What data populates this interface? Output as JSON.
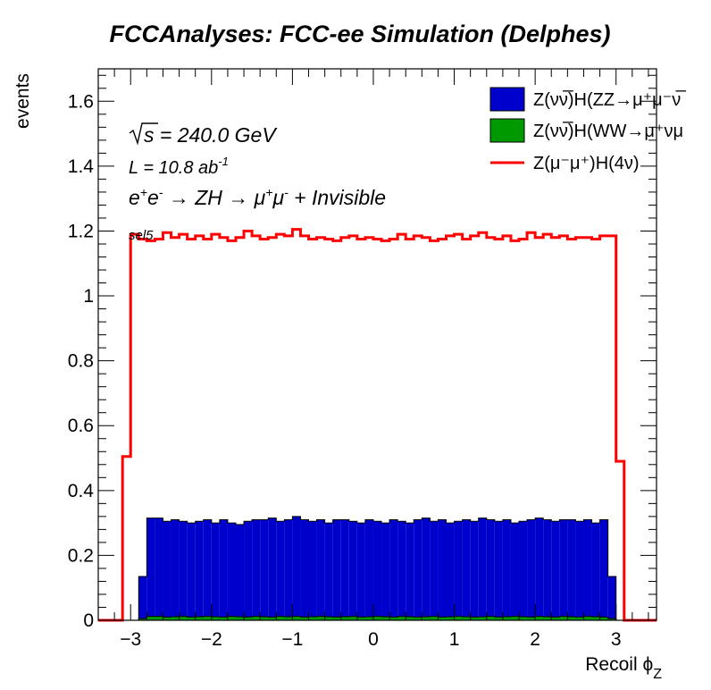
{
  "chart_data": {
    "type": "histogram",
    "title": "FCCAnalyses: FCC-ee Simulation (Delphes)",
    "xlabel": "Recoil ϕ",
    "xlabel_sub": "Z",
    "ylabel": "events",
    "xlim": [
      -3.4,
      3.5
    ],
    "ylim": [
      0,
      1.7
    ],
    "x_ticks": [
      -3,
      -2,
      -1,
      0,
      1,
      2,
      3
    ],
    "x_tick_labels": [
      "−3",
      "−2",
      "−1",
      "0",
      "1",
      "2",
      "3"
    ],
    "y_ticks": [
      0,
      0.2,
      0.4,
      0.6,
      0.8,
      1,
      1.2,
      1.4,
      1.6
    ],
    "y_tick_labels": [
      "0",
      "0.2",
      "0.4",
      "0.6",
      "0.8",
      "1",
      "1.2",
      "1.4",
      "1.6"
    ],
    "bin_edges_range": [
      -3.3,
      3.3
    ],
    "n_bins": 66,
    "annotations": {
      "sqrt_s": "s",
      "energy": " = 240.0 GeV",
      "lumi": "L = 10.8 ab",
      "lumi_exp": "-1",
      "process_e": "e",
      "process_plus": "+",
      "process_e2": "e",
      "process_minus": "-",
      "process_arrow1": " → ZH → μ",
      "process_mu_plus": "+",
      "process_mu": "μ",
      "process_mu_minus": "-",
      "process_tail": " + Invisible",
      "selection": "sel5"
    },
    "legend_position": "top-right",
    "series": [
      {
        "name": "Z(νν̅)H(ZZ→μ⁺μ⁻ν̅",
        "style": "filled",
        "color": "#0000cc",
        "values": [
          0,
          0,
          0,
          0,
          0.135,
          0.315,
          0.315,
          0.305,
          0.31,
          0.305,
          0.3,
          0.305,
          0.31,
          0.3,
          0.31,
          0.3,
          0.295,
          0.305,
          0.31,
          0.31,
          0.315,
          0.305,
          0.31,
          0.32,
          0.31,
          0.305,
          0.31,
          0.3,
          0.31,
          0.31,
          0.305,
          0.3,
          0.31,
          0.305,
          0.3,
          0.31,
          0.305,
          0.3,
          0.31,
          0.315,
          0.305,
          0.31,
          0.3,
          0.305,
          0.31,
          0.305,
          0.315,
          0.31,
          0.305,
          0.31,
          0.3,
          0.305,
          0.31,
          0.315,
          0.31,
          0.305,
          0.31,
          0.31,
          0.305,
          0.31,
          0.3,
          0.31,
          0.135,
          0,
          0,
          0
        ]
      },
      {
        "name": "Z(νν̅)H(WW→μ⁺νμ",
        "style": "filled",
        "color": "#009900",
        "values": [
          0,
          0,
          0,
          0,
          0.005,
          0.012,
          0.012,
          0.01,
          0.011,
          0.012,
          0.01,
          0.011,
          0.012,
          0.011,
          0.01,
          0.012,
          0.011,
          0.01,
          0.012,
          0.011,
          0.01,
          0.012,
          0.011,
          0.012,
          0.01,
          0.011,
          0.012,
          0.011,
          0.01,
          0.011,
          0.012,
          0.01,
          0.011,
          0.012,
          0.011,
          0.01,
          0.012,
          0.011,
          0.01,
          0.011,
          0.012,
          0.01,
          0.011,
          0.012,
          0.011,
          0.01,
          0.011,
          0.012,
          0.01,
          0.011,
          0.012,
          0.011,
          0.01,
          0.012,
          0.011,
          0.01,
          0.012,
          0.011,
          0.01,
          0.012,
          0.011,
          0.01,
          0.005,
          0,
          0,
          0
        ]
      },
      {
        "name": "Z(μ⁻μ⁺)H(4ν)",
        "style": "line",
        "color": "#ff0000",
        "values": [
          0,
          0,
          0.505,
          1.19,
          1.175,
          1.17,
          1.175,
          1.195,
          1.18,
          1.19,
          1.175,
          1.185,
          1.175,
          1.19,
          1.18,
          1.17,
          1.18,
          1.2,
          1.185,
          1.175,
          1.18,
          1.19,
          1.185,
          1.205,
          1.185,
          1.175,
          1.18,
          1.175,
          1.17,
          1.18,
          1.185,
          1.175,
          1.18,
          1.175,
          1.17,
          1.175,
          1.19,
          1.175,
          1.185,
          1.18,
          1.17,
          1.175,
          1.185,
          1.19,
          1.175,
          1.185,
          1.195,
          1.18,
          1.175,
          1.185,
          1.17,
          1.175,
          1.195,
          1.18,
          1.19,
          1.18,
          1.185,
          1.175,
          1.18,
          1.18,
          1.175,
          1.185,
          1.185,
          0.49,
          0,
          0
        ]
      }
    ]
  }
}
